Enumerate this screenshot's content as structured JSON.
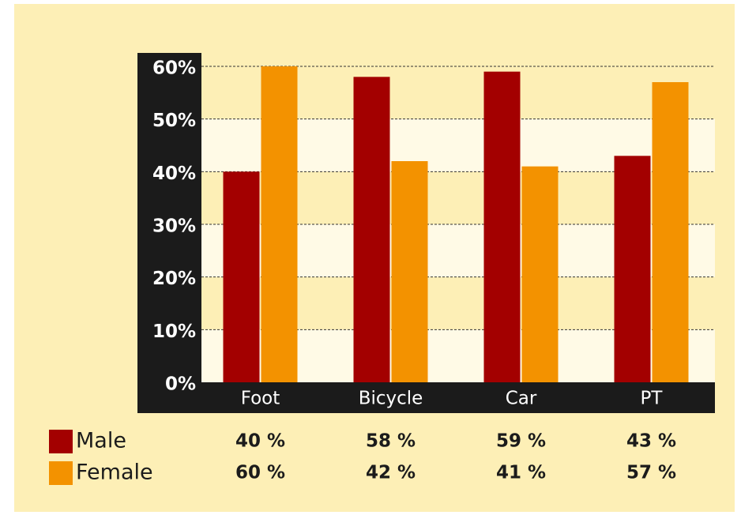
{
  "chart_data": {
    "type": "bar",
    "categories": [
      "Foot",
      "Bicycle",
      "Car",
      "PT"
    ],
    "series": [
      {
        "name": "Male",
        "color": "#a30000",
        "values": [
          40,
          58,
          59,
          43
        ],
        "value_labels": [
          "40 %",
          "58 %",
          "59 %",
          "43 %"
        ]
      },
      {
        "name": "Female",
        "color": "#f39200",
        "values": [
          60,
          42,
          41,
          57
        ],
        "value_labels": [
          "60 %",
          "42 %",
          "41 %",
          "57 %"
        ]
      }
    ],
    "ylim": [
      0,
      60
    ],
    "yticks": [
      {
        "value": 0,
        "label": "0%"
      },
      {
        "value": 10,
        "label": "10%"
      },
      {
        "value": 20,
        "label": "20%"
      },
      {
        "value": 30,
        "label": "30%"
      },
      {
        "value": 40,
        "label": "40%"
      },
      {
        "value": 50,
        "label": "50%"
      },
      {
        "value": 60,
        "label": "60%"
      }
    ],
    "grid": true
  }
}
